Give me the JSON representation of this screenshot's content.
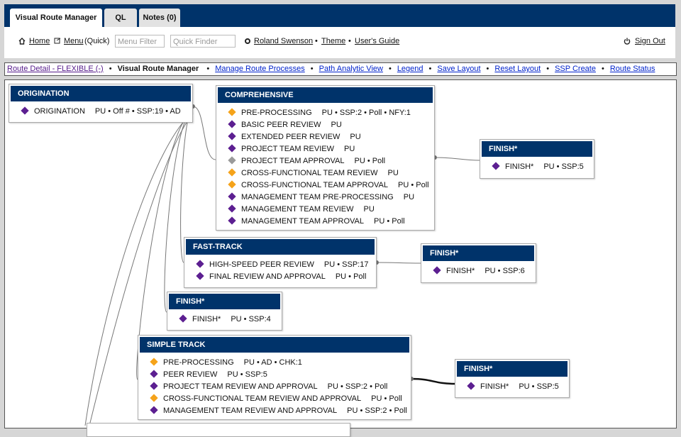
{
  "tabs": [
    "Visual Route Manager",
    "QL",
    "Notes (0)"
  ],
  "toolbar": {
    "home": "Home",
    "menu": "Menu",
    "quick": "(Quick)",
    "menu_filter": "Menu Filter",
    "quick_finder": "Quick Finder",
    "user": "Roland Swenson",
    "theme": "Theme",
    "guide": "User's Guide",
    "sign_out": "Sign Out"
  },
  "separator": "•",
  "breadcrumb": {
    "route": "Route Detail - FLEXIBLE (-)",
    "current": "Visual Route Manager",
    "links": [
      "Manage Route Processes",
      "Path Analytic View",
      "Legend",
      "Save Layout",
      "Reset Layout",
      "SSP Create",
      "Route Status"
    ]
  },
  "nodes": [
    {
      "title": "ORIGINATION",
      "steps": [
        {
          "label": "ORIGINATION",
          "info": "PU • Off # • SSP:19 • AD",
          "color": "#5c1f91"
        }
      ]
    },
    {
      "title": "COMPREHENSIVE",
      "steps": [
        {
          "label": "PRE-PROCESSING",
          "info": "PU • SSP:2 • Poll • NFY:1",
          "color": "#f5a31a"
        },
        {
          "label": "BASIC PEER REVIEW",
          "info": "PU",
          "color": "#5c1f91"
        },
        {
          "label": "EXTENDED PEER REVIEW",
          "info": "PU",
          "color": "#5c1f91"
        },
        {
          "label": "PROJECT TEAM REVIEW",
          "info": "PU",
          "color": "#5c1f91"
        },
        {
          "label": "PROJECT TEAM APPROVAL",
          "info": "PU • Poll",
          "color": "#9a9a9a"
        },
        {
          "label": "CROSS-FUNCTIONAL TEAM REVIEW",
          "info": "PU",
          "color": "#f5a31a"
        },
        {
          "label": "CROSS-FUNCTIONAL TEAM APPROVAL",
          "info": "PU • Poll",
          "color": "#f5a31a"
        },
        {
          "label": "MANAGEMENT TEAM PRE-PROCESSING",
          "info": "PU",
          "color": "#5c1f91"
        },
        {
          "label": "MANAGEMENT TEAM REVIEW",
          "info": "PU",
          "color": "#5c1f91"
        },
        {
          "label": "MANAGEMENT TEAM APPROVAL",
          "info": "PU • Poll",
          "color": "#5c1f91"
        }
      ]
    },
    {
      "title": "FINISH*",
      "steps": [
        {
          "label": "FINISH*",
          "info": "PU • SSP:5",
          "color": "#5c1f91"
        }
      ]
    },
    {
      "title": "FAST-TRACK",
      "steps": [
        {
          "label": "HIGH-SPEED PEER REVIEW",
          "info": "PU • SSP:17",
          "color": "#5c1f91"
        },
        {
          "label": "FINAL REVIEW AND APPROVAL",
          "info": "PU • Poll",
          "color": "#5c1f91"
        }
      ]
    },
    {
      "title": "FINISH*",
      "steps": [
        {
          "label": "FINISH*",
          "info": "PU • SSP:6",
          "color": "#5c1f91"
        }
      ]
    },
    {
      "title": "FINISH*",
      "steps": [
        {
          "label": "FINISH*",
          "info": "PU • SSP:4",
          "color": "#5c1f91"
        }
      ]
    },
    {
      "title": "SIMPLE TRACK",
      "steps": [
        {
          "label": "PRE-PROCESSING",
          "info": "PU • AD • CHK:1",
          "color": "#f5a31a"
        },
        {
          "label": "PEER REVIEW",
          "info": "PU • SSP:5",
          "color": "#5c1f91"
        },
        {
          "label": "PROJECT TEAM REVIEW AND APPROVAL",
          "info": "PU • SSP:2 • Poll",
          "color": "#5c1f91"
        },
        {
          "label": "CROSS-FUNCTIONAL TEAM REVIEW AND APPROVAL",
          "info": "PU • Poll",
          "color": "#f5a31a"
        },
        {
          "label": "MANAGEMENT TEAM REVIEW AND APPROVAL",
          "info": "PU • SSP:2 • Poll",
          "color": "#5c1f91"
        }
      ]
    },
    {
      "title": "FINISH*",
      "steps": [
        {
          "label": "FINISH*",
          "info": "PU • SSP:5",
          "color": "#5c1f91"
        }
      ]
    }
  ]
}
